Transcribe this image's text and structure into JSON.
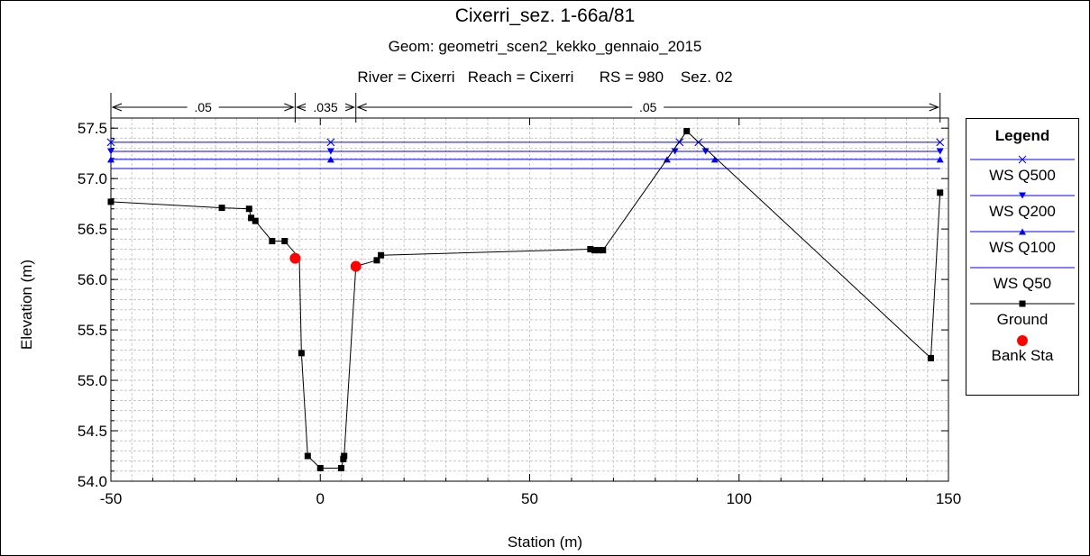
{
  "chart_data": {
    "type": "line",
    "title": "Cixerri_sez. 1-66a/81",
    "subtitle": "Geom: geometri_scen2_kekko_gennaio_2015",
    "subtitle2": "River = Cixerri   Reach = Cixerri      RS = 980    Sez. 02",
    "xlabel": "Station (m)",
    "ylabel": "Elevation (m)",
    "xlim": [
      -50,
      150
    ],
    "ylim": [
      54.0,
      57.5
    ],
    "xticks": [
      "-50",
      "0",
      "50",
      "100",
      "150"
    ],
    "yticks": [
      "54.0",
      "54.5",
      "55.0",
      "55.5",
      "56.0",
      "56.5",
      "57.0",
      "57.5"
    ],
    "grid": true,
    "legend_title": "Legend",
    "legend_position": "right",
    "manning": {
      "boundaries": [
        -50,
        -6,
        8.5,
        148
      ],
      "labels": [
        ".05",
        ".035",
        ".05"
      ]
    },
    "series": [
      {
        "name": "WS Q500",
        "color": "#0000ff",
        "marker": "x",
        "x": [
          -50,
          2.5,
          85.8,
          148
        ],
        "y": [
          57.36,
          57.36,
          57.36,
          57.36
        ],
        "marker_x": [
          -50,
          2.5,
          85.8,
          90.3,
          148
        ]
      },
      {
        "name": "WS Q200",
        "color": "#0000ff",
        "marker": "triangle-down",
        "x": [
          -50,
          2.5,
          84.7,
          92.0,
          148
        ],
        "y": [
          57.27,
          57.27,
          57.27,
          57.27,
          57.27
        ],
        "marker_x": [
          -50,
          2.5,
          84.7,
          92.0,
          148
        ]
      },
      {
        "name": "WS Q100",
        "color": "#0000ff",
        "marker": "triangle-up",
        "x": [
          -50,
          2.5,
          82.8,
          94.2,
          148
        ],
        "y": [
          57.19,
          57.19,
          57.19,
          57.19,
          57.19
        ],
        "marker_x": [
          -50,
          2.5,
          82.8,
          94.2,
          148
        ]
      },
      {
        "name": "WS Q50",
        "color": "#0000ff",
        "marker": "none",
        "x": [
          -50,
          148
        ],
        "y": [
          57.1,
          57.1
        ],
        "marker_x": []
      },
      {
        "name": "Ground",
        "color": "#000000",
        "marker": "square",
        "x": [
          -50,
          -23.5,
          -17,
          -16.5,
          -15.5,
          -11.5,
          -8.5,
          -5,
          -4.5,
          -3,
          0,
          5,
          5.5,
          5.7,
          8.5,
          13.5,
          14.5,
          64.5,
          65.5,
          66.5,
          67.5,
          87.5,
          145.8,
          148
        ],
        "y": [
          56.77,
          56.71,
          56.7,
          56.61,
          56.58,
          56.38,
          56.38,
          56.21,
          55.27,
          54.25,
          54.13,
          54.13,
          54.22,
          54.25,
          56.13,
          56.19,
          56.24,
          56.3,
          56.29,
          56.29,
          56.29,
          57.47,
          55.22,
          56.86
        ],
        "marker_x": [
          -50,
          -23.5,
          -17,
          -16.5,
          -15.5,
          -11.5,
          -8.5,
          -4.5,
          -3,
          0,
          5,
          5.5,
          5.7,
          13.5,
          14.5,
          64.5,
          65.5,
          66.5,
          67.5,
          87.5,
          145.8,
          148
        ]
      },
      {
        "name": "Bank Sta",
        "color": "#ff0000",
        "marker": "circle",
        "x": [
          -6,
          8.5
        ],
        "y": [
          56.21,
          56.13
        ],
        "marker_x": [
          -6,
          8.5
        ]
      }
    ]
  }
}
